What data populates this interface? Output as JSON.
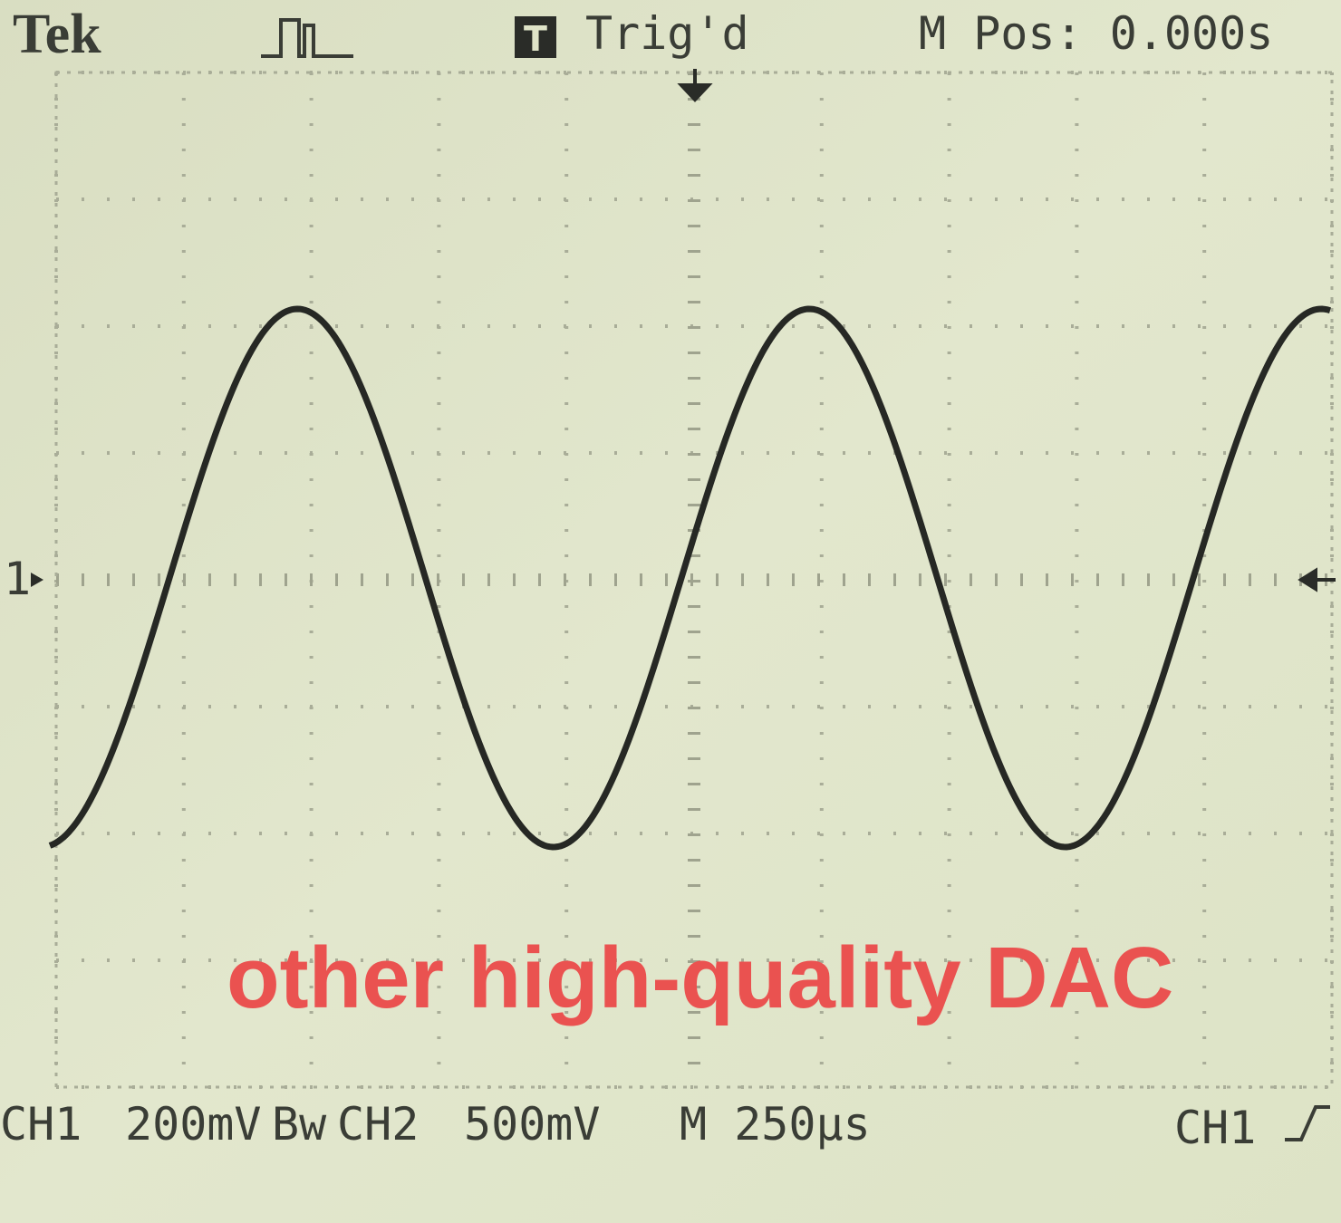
{
  "header": {
    "brand": "Tek",
    "trigger_icon": "T",
    "status": "Trig'd",
    "position": "M Pos: 0.000s"
  },
  "screen": {
    "channel_marker": "1",
    "annotation": "other high-quality DAC"
  },
  "footer": {
    "ch1_label": "CH1",
    "ch1_scale": "200mV",
    "ch1_bandwidth": "Bw",
    "ch2_label": "CH2",
    "ch2_scale": "500mV",
    "timebase": "M 250µs",
    "trigger_source": "CH1"
  }
}
